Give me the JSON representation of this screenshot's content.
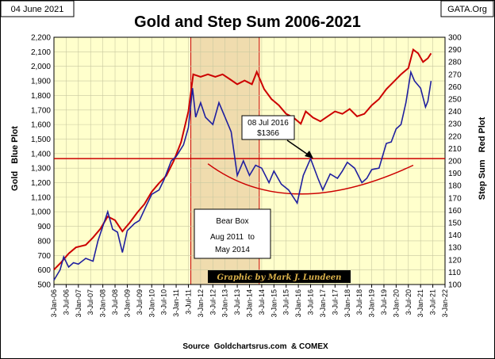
{
  "header": {
    "date": "04 June 2021",
    "site": "GATA.Org"
  },
  "footer": {
    "source": "Source  Goldchartsrus.com  & COMEX"
  },
  "colors": {
    "plot_bg": "#ffffcc",
    "gold_line": "#1f1f9f",
    "step_line": "#cc0000",
    "bear_box": "#f0dcae",
    "grid": "#c8c8a0",
    "banner_bg": "#000000",
    "banner_text": "#d9b04a"
  },
  "chart_data": {
    "type": "line",
    "title": "Gold and Step Sum 2006-2021",
    "ylabel_left": "Gold   Blue Plot",
    "ylabel_right": "Step Sum   Red Plot",
    "y_left_ticks": [
      "500",
      "600",
      "700",
      "800",
      "900",
      "1,000",
      "1,100",
      "1,200",
      "1,300",
      "1,400",
      "1,500",
      "1,600",
      "1,700",
      "1,800",
      "1,900",
      "2,000",
      "2,100",
      "2,200"
    ],
    "y_right_ticks": [
      "100",
      "110",
      "120",
      "130",
      "140",
      "150",
      "160",
      "170",
      "180",
      "190",
      "200",
      "210",
      "220",
      "230",
      "240",
      "250",
      "260",
      "270",
      "280",
      "290",
      "300"
    ],
    "ylim_left": [
      500,
      2200
    ],
    "ylim_right": [
      100,
      300
    ],
    "x_ticks": [
      "3-Jan-06",
      "3-Jul-06",
      "3-Jan-07",
      "3-Jul-07",
      "3-Jan-08",
      "3-Jul-08",
      "3-Jan-09",
      "3-Jul-09",
      "3-Jan-10",
      "3-Jul-10",
      "3-Jan-11",
      "3-Jul-11",
      "3-Jan-12",
      "3-Jul-12",
      "3-Jan-13",
      "3-Jul-13",
      "3-Jan-14",
      "3-Jul-14",
      "3-Jan-15",
      "3-Jul-15",
      "3-Jan-16",
      "3-Jul-16",
      "3-Jan-17",
      "3-Jul-17",
      "3-Jan-18",
      "3-Jul-18",
      "3-Jan-19",
      "3-Jul-19",
      "3-Jan-20",
      "3-Jul-20",
      "3-Jan-21",
      "3-Jul-21",
      "3-Jan-22"
    ],
    "xlim": [
      2006.0,
      2022.0
    ],
    "grid": true,
    "reference_line": {
      "value": 1366,
      "axis": "left"
    },
    "series": [
      {
        "name": "Gold",
        "axis": "left",
        "x": [
          2006.0,
          2006.25,
          2006.4,
          2006.6,
          2006.8,
          2007.0,
          2007.3,
          2007.6,
          2007.8,
          2008.0,
          2008.2,
          2008.4,
          2008.6,
          2008.8,
          2009.0,
          2009.3,
          2009.5,
          2009.8,
          2010.0,
          2010.3,
          2010.5,
          2010.8,
          2011.0,
          2011.3,
          2011.5,
          2011.67,
          2011.8,
          2012.0,
          2012.2,
          2012.5,
          2012.75,
          2013.0,
          2013.25,
          2013.5,
          2013.75,
          2014.0,
          2014.25,
          2014.5,
          2014.8,
          2015.0,
          2015.3,
          2015.6,
          2015.95,
          2016.2,
          2016.5,
          2016.8,
          2017.0,
          2017.3,
          2017.6,
          2017.8,
          2018.0,
          2018.3,
          2018.6,
          2018.8,
          2019.0,
          2019.3,
          2019.6,
          2019.8,
          2020.0,
          2020.2,
          2020.4,
          2020.6,
          2020.75,
          2021.0,
          2021.2,
          2021.3,
          2021.43
        ],
        "y": [
          530,
          600,
          690,
          620,
          650,
          640,
          680,
          660,
          800,
          900,
          1000,
          880,
          860,
          720,
          870,
          920,
          940,
          1050,
          1120,
          1150,
          1220,
          1350,
          1380,
          1460,
          1580,
          1850,
          1650,
          1750,
          1650,
          1600,
          1750,
          1650,
          1550,
          1250,
          1350,
          1250,
          1320,
          1300,
          1200,
          1280,
          1190,
          1150,
          1060,
          1250,
          1366,
          1230,
          1150,
          1260,
          1230,
          1280,
          1340,
          1300,
          1200,
          1230,
          1290,
          1300,
          1470,
          1480,
          1570,
          1600,
          1750,
          1960,
          1900,
          1850,
          1720,
          1760,
          1900
        ]
      },
      {
        "name": "Step Sum",
        "axis": "right",
        "x": [
          2006.0,
          2006.3,
          2006.6,
          2006.9,
          2007.3,
          2007.6,
          2007.9,
          2008.2,
          2008.5,
          2008.8,
          2009.1,
          2009.4,
          2009.7,
          2010.0,
          2010.3,
          2010.6,
          2010.9,
          2011.2,
          2011.5,
          2011.7,
          2012.0,
          2012.3,
          2012.6,
          2012.9,
          2013.2,
          2013.5,
          2013.8,
          2014.1,
          2014.3,
          2014.6,
          2014.9,
          2015.2,
          2015.5,
          2015.8,
          2016.1,
          2016.3,
          2016.6,
          2016.9,
          2017.2,
          2017.5,
          2017.8,
          2018.1,
          2018.4,
          2018.7,
          2019.0,
          2019.3,
          2019.6,
          2019.9,
          2020.2,
          2020.5,
          2020.7,
          2020.9,
          2021.1,
          2021.3,
          2021.43
        ],
        "y": [
          112,
          118,
          125,
          130,
          132,
          138,
          145,
          155,
          152,
          143,
          150,
          158,
          165,
          175,
          182,
          188,
          200,
          215,
          240,
          270,
          268,
          270,
          268,
          270,
          266,
          262,
          265,
          262,
          272,
          258,
          250,
          245,
          238,
          235,
          230,
          240,
          235,
          232,
          236,
          240,
          238,
          242,
          236,
          238,
          245,
          250,
          258,
          264,
          270,
          275,
          290,
          287,
          280,
          283,
          287
        ]
      }
    ],
    "annotations": [
      {
        "label": "08 Jul 2016",
        "value": "$1366"
      },
      {
        "label": "Bear Box",
        "period": "Aug 2011  to",
        "period_end": "May 2014"
      },
      {
        "label": "Graphic by Mark J. Lundeen"
      }
    ],
    "bear_box_range": [
      2011.6,
      2014.4
    ]
  }
}
